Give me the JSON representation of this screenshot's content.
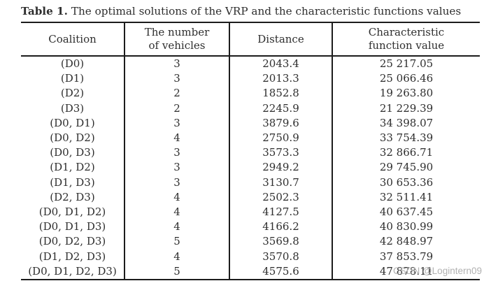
{
  "caption": {
    "label": "Table 1.",
    "text": "The optimal solutions of the VRP and the characteristic functions values"
  },
  "table": {
    "columns": [
      "Coalition",
      "The number\nof vehicles",
      "Distance",
      "Characteristic\nfunction value"
    ],
    "rows": [
      {
        "coalition": "(D0)",
        "vehicles": "3",
        "distance": "2043.4",
        "value": "25 217.05"
      },
      {
        "coalition": "(D1)",
        "vehicles": "3",
        "distance": "2013.3",
        "value": "25 066.46"
      },
      {
        "coalition": "(D2)",
        "vehicles": "2",
        "distance": "1852.8",
        "value": "19 263.80"
      },
      {
        "coalition": "(D3)",
        "vehicles": "2",
        "distance": "2245.9",
        "value": "21 229.39"
      },
      {
        "coalition": "(D0, D1)",
        "vehicles": "3",
        "distance": "3879.6",
        "value": "34 398.07"
      },
      {
        "coalition": "(D0, D2)",
        "vehicles": "4",
        "distance": "2750.9",
        "value": "33 754.39"
      },
      {
        "coalition": "(D0, D3)",
        "vehicles": "3",
        "distance": "3573.3",
        "value": "32 866.71"
      },
      {
        "coalition": "(D1, D2)",
        "vehicles": "3",
        "distance": "2949.2",
        "value": "29 745.90"
      },
      {
        "coalition": "(D1, D3)",
        "vehicles": "3",
        "distance": "3130.7",
        "value": "30 653.36"
      },
      {
        "coalition": "(D2, D3)",
        "vehicles": "4",
        "distance": "2502.3",
        "value": "32 511.41"
      },
      {
        "coalition": "(D0, D1, D2)",
        "vehicles": "4",
        "distance": "4127.5",
        "value": "40 637.45"
      },
      {
        "coalition": "(D0, D1, D3)",
        "vehicles": "4",
        "distance": "4166.2",
        "value": "40 830.99"
      },
      {
        "coalition": "(D0, D2, D3)",
        "vehicles": "5",
        "distance": "3569.8",
        "value": "42 848.97"
      },
      {
        "coalition": "(D1, D2, D3)",
        "vehicles": "4",
        "distance": "3570.8",
        "value": "37 853.79"
      },
      {
        "coalition": "(D0, D1, D2, D3)",
        "vehicles": "5",
        "distance": "4575.6",
        "value": "47 878.11"
      }
    ]
  },
  "watermark": "CSDN @Logintern09",
  "colors": {
    "text": "#2e2e2e",
    "rule": "#1c1c1c",
    "watermark": "#b2b2b2",
    "background": "#ffffff"
  }
}
